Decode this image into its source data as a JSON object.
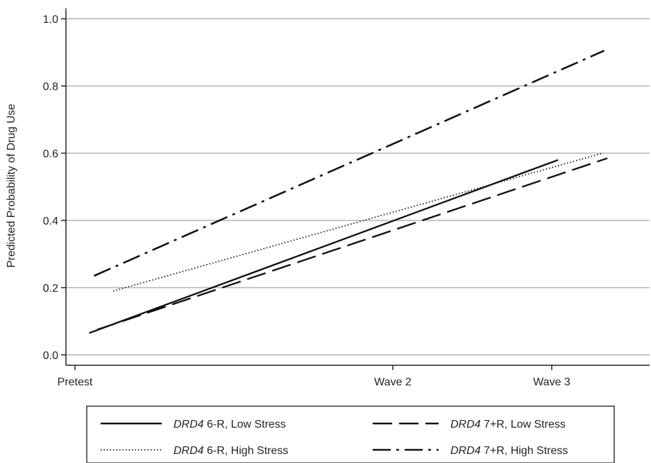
{
  "chart_data": {
    "type": "line",
    "title": "",
    "xlabel": "",
    "ylabel": "Predicted Probability of Drug Use",
    "categories": [
      "Pretest",
      "Wave 2",
      "Wave 3"
    ],
    "x_positions": [
      0,
      2,
      3
    ],
    "ylim": [
      0,
      1.0
    ],
    "y_ticks": [
      "0.0",
      "0.2",
      "0.4",
      "0.6",
      "0.8",
      "1.0"
    ],
    "y_tick_values": [
      0,
      0.2,
      0.4,
      0.6,
      0.8,
      1.0
    ],
    "grid": "horizontal",
    "legend_placement": "bottom",
    "series": [
      {
        "name_gene": "DRD4",
        "name_rest": " 6-R, Low Stress",
        "style": "solid",
        "x": [
          0.09,
          3.04
        ],
        "y": [
          0.065,
          0.58
        ]
      },
      {
        "name_gene": "DRD4",
        "name_rest": " 6-R, High Stress",
        "style": "dotted",
        "x": [
          0.24,
          3.32
        ],
        "y": [
          0.19,
          0.6
        ]
      },
      {
        "name_gene": "DRD4",
        "name_rest": " 7+R, Low Stress",
        "style": "dashed",
        "x": [
          0.14,
          3.35
        ],
        "y": [
          0.075,
          0.585
        ]
      },
      {
        "name_gene": "DRD4",
        "name_rest": " 7+R, High Stress",
        "style": "dashdot",
        "x": [
          0.12,
          3.33
        ],
        "y": [
          0.235,
          0.905
        ]
      }
    ],
    "colors": {
      "lines": "#111111",
      "grid": "#b4b4b4",
      "axis": "#222222"
    }
  }
}
